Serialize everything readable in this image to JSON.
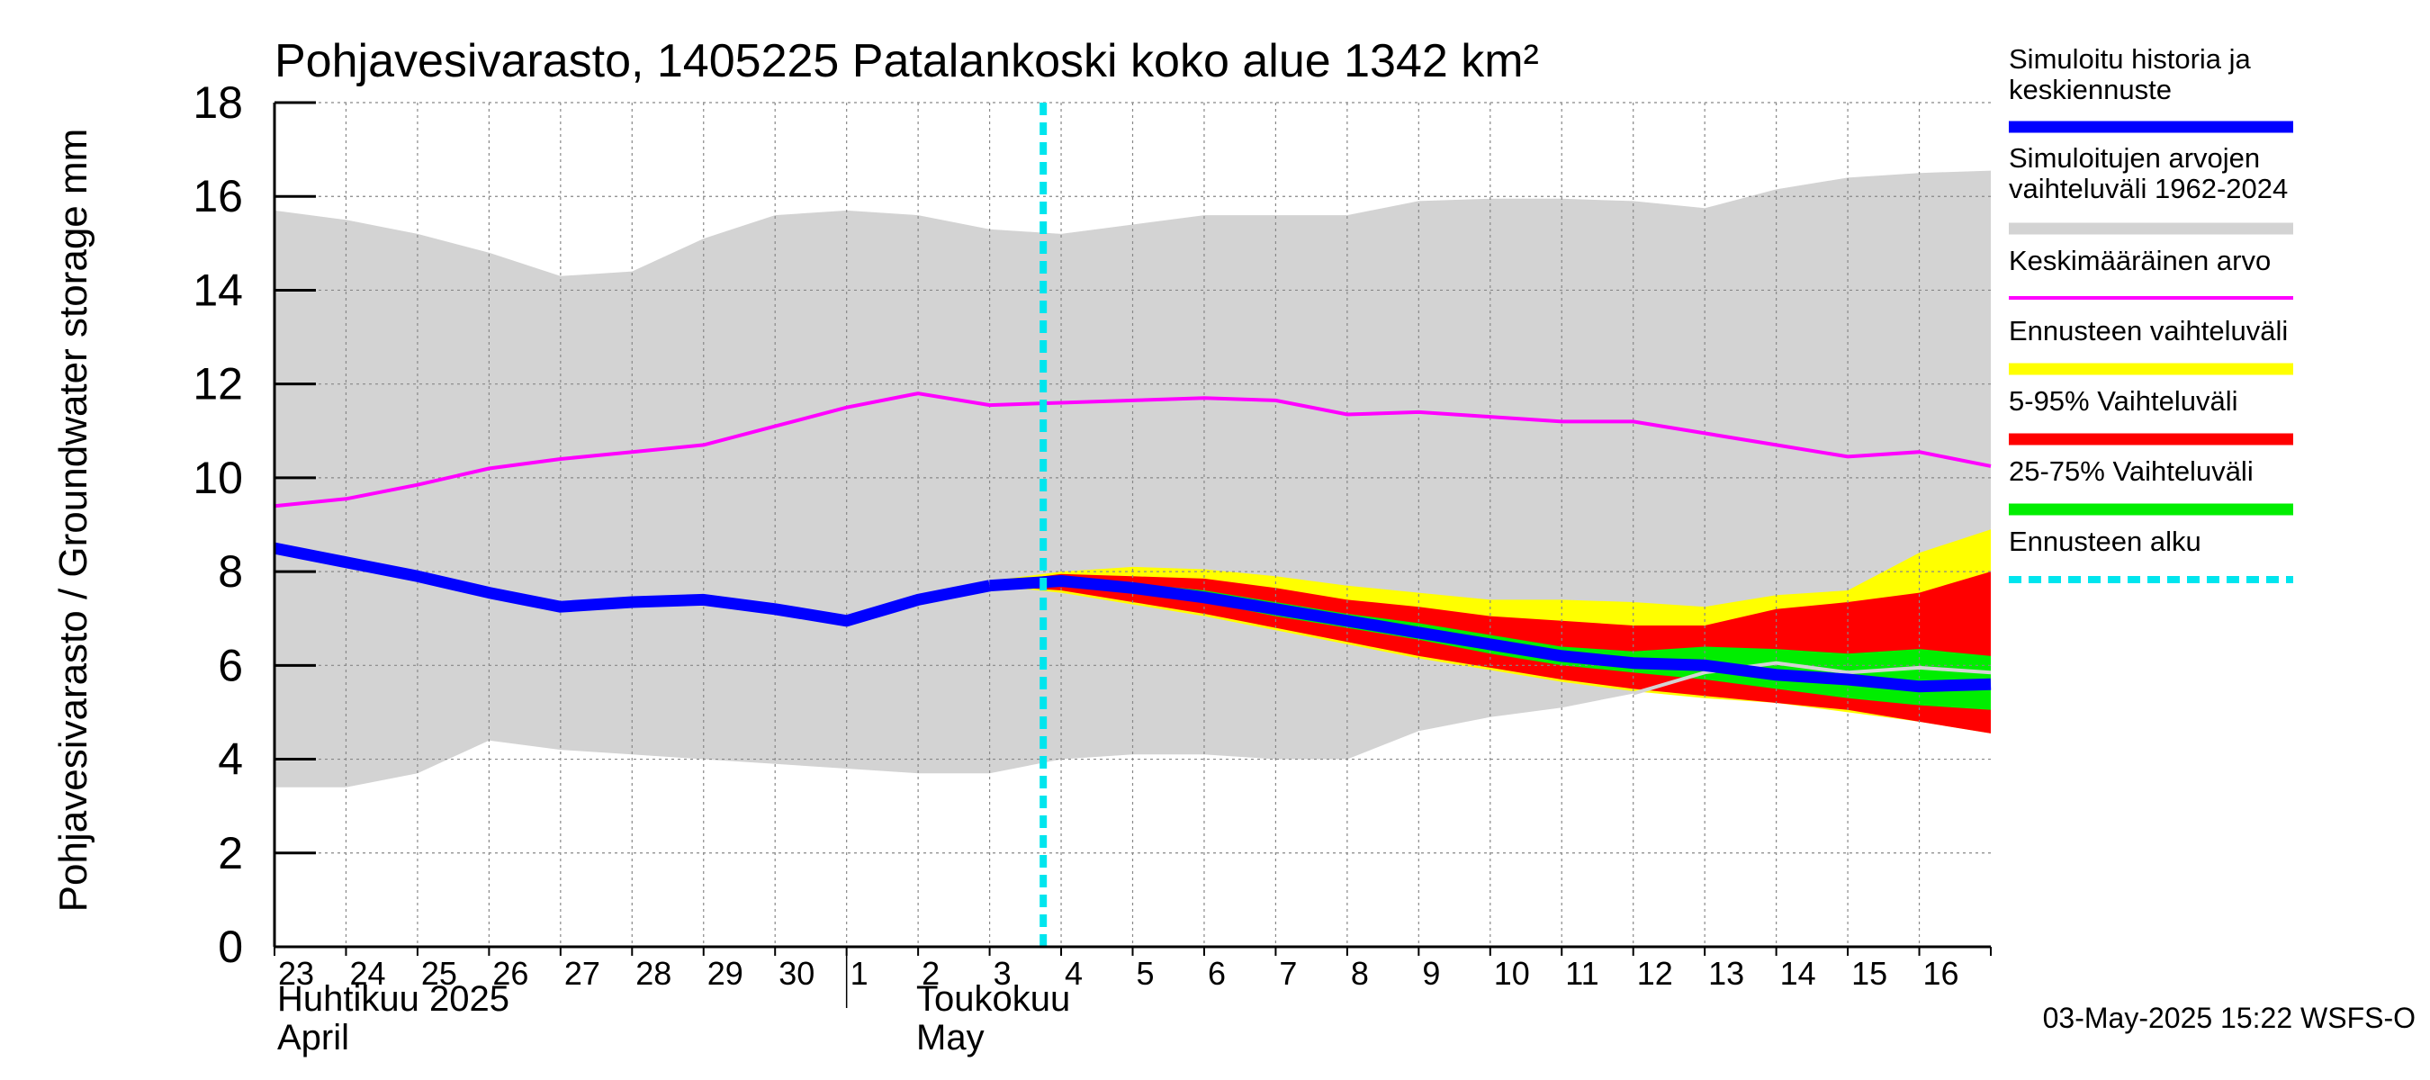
{
  "chart_data": {
    "type": "area",
    "title": "Pohjavesivarasto, 1405225 Patalankoski koko alue 1342 km²",
    "ylabel": "Pohjavesivarasto / Groundwater storage   mm",
    "ylim": [
      0,
      18
    ],
    "yticks": [
      0,
      2,
      4,
      6,
      8,
      10,
      12,
      14,
      16,
      18
    ],
    "day_labels": [
      "23",
      "24",
      "25",
      "26",
      "27",
      "28",
      "29",
      "30",
      "1",
      "2",
      "3",
      "4",
      "5",
      "6",
      "7",
      "8",
      "9",
      "10",
      "11",
      "12",
      "13",
      "14",
      "15",
      "16"
    ],
    "month_labels": [
      {
        "line1": "Huhtikuu  2025",
        "line2": "April"
      },
      {
        "line1": "Toukokuu",
        "line2": "May"
      }
    ],
    "forecast_start_day": 10.75,
    "timestamp": "03-May-2025 15:22 WSFS-O",
    "legend": [
      {
        "label": "Simuloitu historia ja keskiennuste",
        "color": "#0000ff"
      },
      {
        "label": "Simuloitujen arvojen vaihteluväli 1962-2024",
        "color": "#d3d3d3"
      },
      {
        "label": "Keskimääräinen arvo",
        "color": "#ff00ff"
      },
      {
        "label": "Ennusteen vaihteluväli",
        "color": "#ffff00"
      },
      {
        "label": "5-95% Vaihteluväli",
        "color": "#ff0000"
      },
      {
        "label": "25-75% Vaihteluväli",
        "color": "#00ee00"
      },
      {
        "label": "Ennusteen alku",
        "color": "#00e5ee"
      }
    ],
    "series": {
      "hist_range": {
        "x": [
          0,
          1,
          2,
          3,
          4,
          5,
          6,
          7,
          8,
          9,
          10,
          11,
          12,
          13,
          14,
          15,
          16,
          17,
          18,
          19,
          20,
          21,
          22,
          23,
          24
        ],
        "upper": [
          15.7,
          15.5,
          15.2,
          14.8,
          14.3,
          14.4,
          15.1,
          15.6,
          15.7,
          15.6,
          15.3,
          15.2,
          15.4,
          15.6,
          15.6,
          15.6,
          15.9,
          15.95,
          15.95,
          15.9,
          15.75,
          16.15,
          16.4,
          16.5,
          16.55
        ],
        "lower": [
          3.4,
          3.4,
          3.7,
          4.4,
          4.2,
          4.1,
          4.0,
          3.9,
          3.8,
          3.7,
          3.7,
          4.0,
          4.1,
          4.1,
          4.0,
          4.0,
          4.6,
          4.9,
          5.1,
          5.4,
          6.0,
          5.9,
          5.8,
          5.7,
          5.6
        ]
      },
      "mean": {
        "x": [
          0,
          1,
          2,
          3,
          4,
          5,
          6,
          7,
          8,
          9,
          10,
          11,
          12,
          13,
          14,
          15,
          16,
          17,
          18,
          19,
          20,
          21,
          22,
          23,
          24
        ],
        "values": [
          9.4,
          9.55,
          9.85,
          10.2,
          10.4,
          10.55,
          10.7,
          11.1,
          11.5,
          11.8,
          11.55,
          11.6,
          11.65,
          11.7,
          11.65,
          11.35,
          11.4,
          11.3,
          11.2,
          11.2,
          10.95,
          10.7,
          10.45,
          10.55,
          10.25
        ]
      },
      "history": {
        "x": [
          0,
          1,
          2,
          3,
          4,
          5,
          6,
          7,
          8,
          9,
          10
        ],
        "values": [
          8.5,
          8.2,
          7.9,
          7.55,
          7.25,
          7.35,
          7.4,
          7.2,
          6.95,
          7.4,
          7.7
        ]
      },
      "forecast_range": {
        "x": [
          10,
          11,
          12,
          13,
          14,
          15,
          16,
          17,
          18,
          19,
          20,
          21,
          22,
          23,
          24
        ],
        "upper": [
          7.8,
          8.0,
          8.1,
          8.05,
          7.9,
          7.7,
          7.55,
          7.4,
          7.4,
          7.35,
          7.25,
          7.5,
          7.6,
          8.4,
          8.9
        ],
        "lower": [
          7.7,
          7.55,
          7.3,
          7.05,
          6.75,
          6.45,
          6.15,
          5.9,
          5.65,
          5.45,
          5.3,
          5.2,
          5.0,
          4.8,
          4.55
        ]
      },
      "p5_95": {
        "x": [
          10,
          11,
          12,
          13,
          14,
          15,
          16,
          17,
          18,
          19,
          20,
          21,
          22,
          23,
          24
        ],
        "upper": [
          7.75,
          7.95,
          7.9,
          7.85,
          7.65,
          7.4,
          7.25,
          7.05,
          6.95,
          6.85,
          6.85,
          7.2,
          7.35,
          7.55,
          8.0
        ],
        "lower": [
          7.7,
          7.6,
          7.35,
          7.1,
          6.8,
          6.5,
          6.2,
          5.95,
          5.7,
          5.5,
          5.35,
          5.2,
          5.05,
          4.8,
          4.55
        ]
      },
      "p25_75": {
        "x": [
          10,
          11,
          12,
          13,
          14,
          15,
          16,
          17,
          18,
          19,
          20,
          21,
          22,
          23,
          24
        ],
        "upper": [
          7.7,
          7.85,
          7.75,
          7.6,
          7.35,
          7.1,
          6.9,
          6.65,
          6.4,
          6.3,
          6.4,
          6.35,
          6.25,
          6.35,
          6.2
        ],
        "lower": [
          7.7,
          7.7,
          7.55,
          7.35,
          7.05,
          6.8,
          6.55,
          6.25,
          6.0,
          5.85,
          5.7,
          5.5,
          5.3,
          5.15,
          5.05
        ]
      },
      "median_forecast": {
        "x": [
          10,
          11,
          12,
          13,
          14,
          15,
          16,
          17,
          18,
          19,
          20,
          21,
          22,
          23,
          24
        ],
        "values": [
          7.7,
          7.8,
          7.65,
          7.45,
          7.2,
          6.95,
          6.7,
          6.45,
          6.2,
          6.05,
          6.0,
          5.8,
          5.7,
          5.55,
          5.6
        ]
      },
      "gray_line": {
        "x": [
          19,
          20,
          21,
          22,
          23,
          24
        ],
        "values": [
          5.4,
          5.85,
          6.05,
          5.85,
          5.95,
          5.85
        ]
      }
    }
  }
}
